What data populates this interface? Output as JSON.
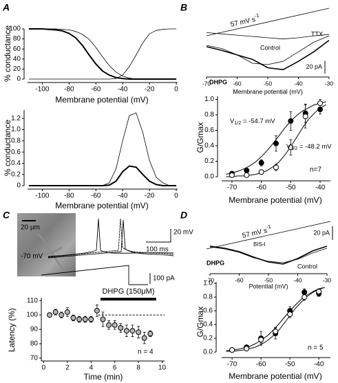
{
  "chart_data": [
    {
      "type": "line",
      "panel_label": "A",
      "ylabel": "% conductance",
      "xlabel": "Membrane potential (mV)",
      "x": [
        -110,
        -105,
        -100,
        -95,
        -90,
        -85,
        -80,
        -75,
        -70,
        -65,
        -60,
        -55,
        -50,
        -45,
        -40,
        -35,
        -30,
        -25,
        -20,
        -15,
        -10,
        -5,
        0
      ],
      "series": [
        {
          "color": "#000",
          "line_width": 2,
          "values": [
            100,
            100,
            100,
            99,
            98,
            96,
            91,
            82,
            67,
            48,
            30,
            16,
            8,
            3,
            1,
            0,
            0,
            0,
            0,
            0,
            0,
            0,
            0
          ]
        },
        {
          "color": "#000",
          "line_width": 0.8,
          "values": [
            100,
            100,
            100,
            100,
            100,
            99,
            98,
            95,
            89,
            79,
            63,
            44,
            27,
            14,
            6,
            2,
            0,
            0,
            0,
            0,
            0,
            0,
            0
          ]
        },
        {
          "color": "#000",
          "line_width": 0.8,
          "values": [
            0,
            0,
            0,
            0,
            0,
            0,
            0,
            0,
            0,
            0,
            0,
            0,
            0,
            1,
            8,
            25,
            48,
            72,
            90,
            97,
            99,
            100,
            100
          ]
        }
      ],
      "xlim": [
        -111,
        1
      ],
      "ylim": [
        0,
        100
      ],
      "xticks": [
        -100,
        -80,
        -60,
        -40,
        -20,
        0
      ],
      "yticks": [
        0,
        20,
        40,
        60,
        80,
        100
      ]
    },
    {
      "type": "line",
      "ylabel": "% conductance",
      "xlabel": "Membrane potential (mV)",
      "x": [
        -110,
        -105,
        -100,
        -95,
        -90,
        -85,
        -80,
        -75,
        -70,
        -65,
        -60,
        -55,
        -50,
        -45,
        -40,
        -35,
        -30,
        -25,
        -20,
        -15,
        -10,
        -5,
        0
      ],
      "series": [
        {
          "color": "#000",
          "line_width": 0.8,
          "values": [
            0,
            0,
            0,
            0,
            0,
            0,
            0,
            0,
            0,
            0,
            0,
            0,
            0.05,
            0.3,
            0.8,
            1.25,
            1.3,
            0.95,
            0.45,
            0.15,
            0.05,
            0,
            0
          ]
        },
        {
          "color": "#000",
          "line_width": 2,
          "values": [
            0,
            0,
            0,
            0,
            0,
            0,
            0,
            0,
            0,
            0,
            0,
            0,
            0.01,
            0.08,
            0.25,
            0.35,
            0.33,
            0.2,
            0.08,
            0.02,
            0,
            0,
            0
          ]
        }
      ],
      "xlim": [
        -111,
        1
      ],
      "ylim": [
        0,
        1.35
      ],
      "xticks": [
        -100,
        -80,
        -60,
        -40,
        -20,
        0
      ],
      "yticks": [
        0,
        0.2,
        0.4,
        0.6,
        0.8,
        {
          "value": 1,
          "label": "1.0"
        },
        1.2
      ]
    },
    {
      "type": "traces",
      "panel_label": "B",
      "xlabel": "Membrane potential (mV)",
      "rate_label": {
        "text": "57 mV s",
        "sup": "-1"
      },
      "x": [
        -70,
        -65,
        -60,
        -55,
        -50,
        -45,
        -40,
        -35,
        -30
      ],
      "series": [
        {
          "name": "TTX",
          "color": "#000",
          "line_width": 0.8,
          "values": [
            0,
            -2,
            -4,
            -6,
            -8,
            -10,
            -8,
            -5,
            -3
          ]
        },
        {
          "name": "Control",
          "color": "#000",
          "line_width": 0.8,
          "values": [
            -20,
            -25,
            -35,
            -48,
            -50,
            -45,
            -30,
            -15,
            -5
          ]
        },
        {
          "name": "DHPG",
          "color": "#000",
          "line_width": 1.6,
          "label_bold": true,
          "values": [
            -22,
            -28,
            -35,
            -42,
            -55,
            -58,
            -45,
            -30,
            -12
          ]
        }
      ],
      "scale_bar": {
        "value": 20,
        "label": "20 pA"
      },
      "xlim": [
        -70,
        -30
      ],
      "ylim": [
        -62,
        8
      ],
      "xticks": [
        -70,
        -60,
        -50,
        -40,
        -30
      ]
    },
    {
      "type": "scatter",
      "ylabel": "G/Gmax",
      "xlabel": "Membrane potential (mV)",
      "x": [
        -70,
        -65,
        -60,
        -55,
        -50,
        -45,
        -40
      ],
      "fit_x": [
        -72,
        -70,
        -68,
        -66,
        -64,
        -62,
        -60,
        -58,
        -56,
        -54,
        -52,
        -50,
        -48,
        -46,
        -44,
        -42,
        -40,
        -38
      ],
      "series": [
        {
          "marker": "filled",
          "color": "#000",
          "values": [
            0.04,
            0.08,
            0.18,
            0.43,
            0.72,
            0.82,
            0.87
          ],
          "errors": [
            0.02,
            0.02,
            0.04,
            0.1,
            0.12,
            0.12,
            0.06
          ],
          "fit": [
            0.03,
            0.05,
            0.07,
            0.1,
            0.14,
            0.19,
            0.26,
            0.34,
            0.43,
            0.53,
            0.63,
            0.72,
            0.79,
            0.85,
            0.89,
            0.93,
            0.95,
            0.97
          ]
        },
        {
          "marker": "open",
          "color": "#fff",
          "values": [
            0.02,
            0.02,
            0.06,
            0.12,
            0.38,
            0.78,
            0.95
          ],
          "errors": [
            0.02,
            0.02,
            0.03,
            0.04,
            0.1,
            0.15,
            0.05
          ],
          "fit": [
            0,
            0,
            0.01,
            0.01,
            0.02,
            0.03,
            0.05,
            0.08,
            0.13,
            0.19,
            0.28,
            0.39,
            0.51,
            0.63,
            0.74,
            0.82,
            0.89,
            0.93
          ]
        }
      ],
      "annotations": [
        {
          "text": "V",
          "sub": "1/2",
          "rest": " = -54.7 mV"
        },
        {
          "text": "V",
          "sub": "1/2",
          "rest": " = -48.2 mV"
        }
      ],
      "n_label": "n=7",
      "xlim": [
        -73.5,
        -36.5
      ],
      "ylim": [
        0,
        1.04
      ],
      "xticks": [
        -70,
        -60,
        -50,
        -40
      ],
      "yticks": [
        {
          "value": 0,
          "label": "0.0"
        },
        0.2,
        0.4,
        0.6,
        0.8,
        {
          "value": 1,
          "label": "1.0"
        }
      ]
    },
    {
      "type": "image",
      "panel_label": "C",
      "image_scale_label": "20 µm",
      "voltage_scale_label": "20 mV",
      "time_scale_label": "100 ms",
      "current_scale_label": "100 pA",
      "holding_label": "-70 mV"
    },
    {
      "type": "scatter",
      "ylabel": "Latency (%)",
      "xlabel": "Time (min)",
      "x": [
        0.5,
        1,
        1.5,
        2,
        2.5,
        3,
        3.5,
        4,
        4.5,
        5,
        5.5,
        6,
        6.5,
        7,
        7.5,
        8,
        8.5,
        9
      ],
      "series": [
        {
          "marker": "filled",
          "color": "#b4b4b4",
          "values": [
            100,
            102,
            100,
            102,
            98,
            97,
            97,
            97,
            103,
            97,
            93,
            93,
            91,
            89,
            89,
            88,
            84,
            87
          ],
          "errors": [
            1,
            2,
            2,
            3,
            2,
            2,
            2,
            2,
            4,
            5,
            3,
            3,
            3,
            4,
            4,
            4,
            4,
            2
          ]
        }
      ],
      "reference_line": {
        "value": 100,
        "start": 4.6
      },
      "treatment": {
        "label": "DHPG (150μM)",
        "start": 4.8,
        "end": 9.5
      },
      "n_label": "n = 4",
      "xlim": [
        -0.2,
        10.2
      ],
      "ylim": [
        68,
        112
      ],
      "xticks": [
        0,
        2,
        4,
        6,
        8,
        10
      ],
      "yticks": [
        70,
        80,
        90,
        100,
        110
      ]
    },
    {
      "type": "traces",
      "panel_label": "D",
      "xlabel": "Potential (mV)",
      "rate_label": {
        "text": "57 mV s",
        "sup": "-1"
      },
      "condition_label": "BIS-I",
      "x": [
        -70,
        -65,
        -60,
        -55,
        -50,
        -45,
        -40,
        -35,
        -30
      ],
      "series": [
        {
          "name": "DHPG",
          "color": "#000",
          "line_width": 1.6,
          "label_bold": true,
          "values": [
            0,
            -3,
            -8,
            -16,
            -23,
            -26,
            -18,
            -7,
            0
          ]
        },
        {
          "name": "Control",
          "color": "#000",
          "line_width": 0.8,
          "values": [
            -1,
            -4,
            -9,
            -17,
            -22,
            -24,
            -19,
            -10,
            -3
          ]
        }
      ],
      "scale_bar": {
        "value": 20,
        "label": "20 pA"
      },
      "xlim": [
        -70,
        -30
      ],
      "ylim": [
        -32,
        8
      ],
      "xticks": [
        -70,
        -60,
        -50,
        -40,
        -30
      ]
    },
    {
      "type": "scatter",
      "ylabel": "G/Gmax",
      "xlabel": "Membrane potential (mV)",
      "x": [
        -70,
        -65,
        -60,
        -55,
        -50,
        -45,
        -40
      ],
      "fit_x": [
        -72,
        -70,
        -68,
        -66,
        -64,
        -62,
        -60,
        -58,
        -56,
        -54,
        -52,
        -50,
        -48,
        -46,
        -44,
        -42,
        -40,
        -38
      ],
      "series": [
        {
          "marker": "filled",
          "color": "#000",
          "values": [
            0.03,
            0.07,
            0.2,
            0.27,
            0.6,
            0.87,
            0.85
          ],
          "errors": [
            0.02,
            0.03,
            0.1,
            0.08,
            0.06,
            0.05,
            0.04
          ],
          "fit": [
            0.02,
            0.03,
            0.04,
            0.06,
            0.08,
            0.12,
            0.17,
            0.23,
            0.31,
            0.4,
            0.5,
            0.6,
            0.69,
            0.77,
            0.83,
            0.88,
            0.92,
            0.94
          ]
        },
        {
          "marker": "open",
          "color": "#fff",
          "values": [
            0.03,
            0.05,
            0.18,
            0.3,
            0.55,
            0.8,
            0.88
          ],
          "errors": [
            0.02,
            0.02,
            0.05,
            0.06,
            0.05,
            0.05,
            0.04
          ],
          "fit": [
            0.01,
            0.01,
            0.02,
            0.03,
            0.05,
            0.07,
            0.11,
            0.16,
            0.23,
            0.31,
            0.42,
            0.53,
            0.64,
            0.73,
            0.81,
            0.87,
            0.91,
            0.94
          ]
        }
      ],
      "n_label": "n = 5",
      "xlim": [
        -73.6,
        -36
      ],
      "ylim": [
        0,
        1.02
      ],
      "xticks": [
        -70,
        -60,
        -50,
        -40
      ],
      "yticks": [
        {
          "value": 0,
          "label": "0.0"
        },
        0.2,
        0.4,
        0.6,
        0.8,
        {
          "value": 1,
          "label": "1.0"
        }
      ]
    }
  ]
}
